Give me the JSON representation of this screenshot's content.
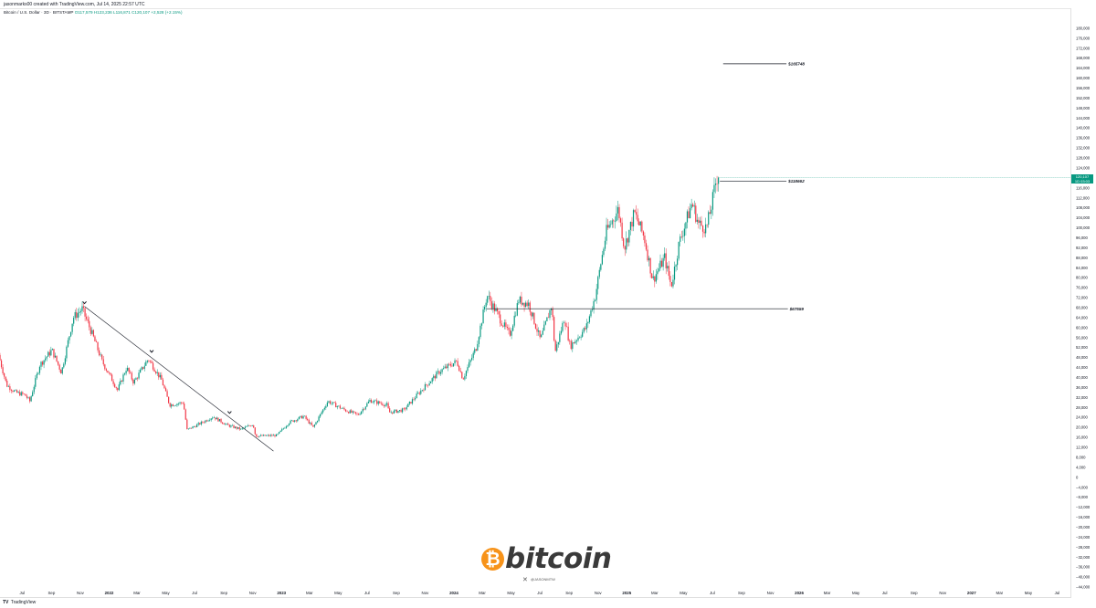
{
  "header": {
    "credit": "jasonmarks00 created with TradingView.com, Jul 14, 2025 22:57 UTC",
    "symbol": "Bitcoin / U.S. Dollar · 3D · BITSTAMP",
    "ohlc": "O117,579 H123,236 L116,871 C120,107 +2,528 (+2.15%)"
  },
  "price_badge": {
    "price": "120,107",
    "countdown": "1D 03:03"
  },
  "branding": {
    "tradingview": "TradingView",
    "tv_glyph": "TV",
    "coin_glyph": "₿",
    "word": "bitcoin",
    "handle": "@JASONMTW",
    "x_icon": "x-logo-icon"
  },
  "colors": {
    "up": "#089981",
    "down": "#f23645",
    "annotation": "#131722",
    "btc_orange": "#f7931a"
  },
  "chart_data": {
    "type": "candlestick",
    "title": "",
    "y_axis": {
      "min": -48000,
      "max": 184000,
      "ticks": [
        -44000,
        -40000,
        -36000,
        -32000,
        -28000,
        -24000,
        -20000,
        -16000,
        -12000,
        -8000,
        -4000,
        0,
        4000,
        8000,
        12000,
        16000,
        20000,
        24000,
        28000,
        32000,
        36000,
        40000,
        44000,
        48000,
        52000,
        56000,
        60000,
        64000,
        68000,
        72000,
        76000,
        80000,
        84000,
        88000,
        92000,
        96000,
        100000,
        104000,
        108000,
        112000,
        116000,
        120000,
        124000,
        128000,
        132000,
        136000,
        140000,
        144000,
        148000,
        152000,
        156000,
        160000,
        164000,
        168000,
        172000,
        176000,
        180000
      ],
      "side": "right"
    },
    "x_axis": {
      "range": [
        "2021-05-15",
        "2027-10-01"
      ],
      "ticks": [
        {
          "label": "ay",
          "date": "2021-05-01"
        },
        {
          "label": "Jul",
          "date": "2021-07-01"
        },
        {
          "label": "Sep",
          "date": "2021-09-01"
        },
        {
          "label": "Nov",
          "date": "2021-11-01"
        },
        {
          "label": "2022",
          "date": "2022-01-01"
        },
        {
          "label": "Mar",
          "date": "2022-03-01"
        },
        {
          "label": "May",
          "date": "2022-05-01"
        },
        {
          "label": "Jul",
          "date": "2022-07-01"
        },
        {
          "label": "Sep",
          "date": "2022-09-01"
        },
        {
          "label": "Nov",
          "date": "2022-11-01"
        },
        {
          "label": "2023",
          "date": "2023-01-01"
        },
        {
          "label": "Mar",
          "date": "2023-03-01"
        },
        {
          "label": "May",
          "date": "2023-05-01"
        },
        {
          "label": "Jul",
          "date": "2023-07-01"
        },
        {
          "label": "Sep",
          "date": "2023-09-01"
        },
        {
          "label": "Nov",
          "date": "2023-11-01"
        },
        {
          "label": "2024",
          "date": "2024-01-01"
        },
        {
          "label": "Mar",
          "date": "2024-03-01"
        },
        {
          "label": "May",
          "date": "2024-05-01"
        },
        {
          "label": "Jul",
          "date": "2024-07-01"
        },
        {
          "label": "Sep",
          "date": "2024-09-01"
        },
        {
          "label": "Nov",
          "date": "2024-11-01"
        },
        {
          "label": "2025",
          "date": "2025-01-01"
        },
        {
          "label": "Mar",
          "date": "2025-03-01"
        },
        {
          "label": "May",
          "date": "2025-05-01"
        },
        {
          "label": "Jul",
          "date": "2025-07-01"
        },
        {
          "label": "Sep",
          "date": "2025-09-01"
        },
        {
          "label": "Nov",
          "date": "2025-11-01"
        },
        {
          "label": "2026",
          "date": "2026-01-01"
        },
        {
          "label": "Mar",
          "date": "2026-03-01"
        },
        {
          "label": "May",
          "date": "2026-05-01"
        },
        {
          "label": "Jul",
          "date": "2026-07-01"
        },
        {
          "label": "Sep",
          "date": "2026-09-01"
        },
        {
          "label": "Nov",
          "date": "2026-11-01"
        },
        {
          "label": "2027",
          "date": "2027-01-01"
        },
        {
          "label": "Mar",
          "date": "2027-03-01"
        },
        {
          "label": "May",
          "date": "2027-05-01"
        },
        {
          "label": "Jul",
          "date": "2027-07-01"
        },
        {
          "label": "Sep",
          "date": "2027-09-01"
        }
      ]
    },
    "price_path": [
      [
        "2021-05-15",
        49000
      ],
      [
        "2021-06-01",
        37000
      ],
      [
        "2021-06-20",
        34000
      ],
      [
        "2021-07-10",
        33000
      ],
      [
        "2021-07-20",
        30500
      ],
      [
        "2021-08-10",
        45000
      ],
      [
        "2021-09-05",
        51000
      ],
      [
        "2021-09-25",
        42000
      ],
      [
        "2021-10-20",
        64000
      ],
      [
        "2021-11-08",
        67500
      ],
      [
        "2021-11-30",
        57000
      ],
      [
        "2021-12-20",
        46500
      ],
      [
        "2022-01-22",
        35000
      ],
      [
        "2022-02-10",
        44000
      ],
      [
        "2022-02-25",
        38000
      ],
      [
        "2022-03-28",
        47500
      ],
      [
        "2022-04-25",
        39000
      ],
      [
        "2022-05-12",
        29000
      ],
      [
        "2022-06-10",
        30000
      ],
      [
        "2022-06-18",
        19000
      ],
      [
        "2022-07-10",
        21000
      ],
      [
        "2022-08-12",
        24300
      ],
      [
        "2022-09-10",
        21000
      ],
      [
        "2022-10-10",
        19200
      ],
      [
        "2022-11-05",
        21300
      ],
      [
        "2022-11-10",
        16500
      ],
      [
        "2022-12-25",
        16800
      ],
      [
        "2023-01-20",
        22000
      ],
      [
        "2023-02-20",
        24500
      ],
      [
        "2023-03-12",
        20000
      ],
      [
        "2023-04-12",
        30500
      ],
      [
        "2023-05-20",
        26800
      ],
      [
        "2023-06-15",
        25000
      ],
      [
        "2023-07-10",
        30800
      ],
      [
        "2023-08-15",
        29000
      ],
      [
        "2023-08-20",
        26000
      ],
      [
        "2023-09-20",
        27000
      ],
      [
        "2023-10-25",
        34500
      ],
      [
        "2023-12-05",
        42500
      ],
      [
        "2024-01-10",
        46500
      ],
      [
        "2024-01-23",
        39500
      ],
      [
        "2024-02-20",
        52000
      ],
      [
        "2024-03-14",
        73000
      ],
      [
        "2024-04-15",
        62000
      ],
      [
        "2024-05-01",
        57000
      ],
      [
        "2024-05-20",
        71000
      ],
      [
        "2024-06-10",
        69500
      ],
      [
        "2024-07-05",
        55000
      ],
      [
        "2024-07-29",
        69000
      ],
      [
        "2024-08-05",
        50000
      ],
      [
        "2024-08-25",
        64000
      ],
      [
        "2024-09-06",
        52500
      ],
      [
        "2024-10-10",
        60000
      ],
      [
        "2024-10-29",
        72500
      ],
      [
        "2024-11-12",
        88000
      ],
      [
        "2024-11-22",
        98500
      ],
      [
        "2024-12-17",
        107500
      ],
      [
        "2024-12-30",
        92000
      ],
      [
        "2025-01-20",
        106000
      ],
      [
        "2025-02-10",
        96000
      ],
      [
        "2025-02-28",
        79000
      ],
      [
        "2025-03-25",
        88000
      ],
      [
        "2025-04-08",
        76500
      ],
      [
        "2025-04-25",
        94000
      ],
      [
        "2025-05-22",
        110000
      ],
      [
        "2025-06-05",
        101500
      ],
      [
        "2025-06-22",
        100000
      ],
      [
        "2025-07-03",
        109500
      ],
      [
        "2025-07-11",
        118000
      ],
      [
        "2025-07-14",
        120107
      ]
    ],
    "levels": [
      {
        "label": "$165748",
        "price": 165748,
        "from": "2025-07-24",
        "to": "2025-12-05"
      },
      {
        "label": "$118662",
        "price": 118662,
        "from": "2025-07-17",
        "to": "2025-12-05"
      },
      {
        "label": "$67559",
        "price": 67559,
        "from": "2024-03-10",
        "to": "2025-12-08"
      }
    ],
    "trendline": {
      "from": [
        "2021-11-10",
        68500
      ],
      "to": [
        "2022-12-15",
        10500
      ]
    },
    "markers": [
      {
        "date": "2021-11-10",
        "price": 70000
      },
      {
        "date": "2022-04-01",
        "price": 50500
      },
      {
        "date": "2022-09-13",
        "price": 26000
      }
    ],
    "grid": false,
    "legend": "none"
  }
}
